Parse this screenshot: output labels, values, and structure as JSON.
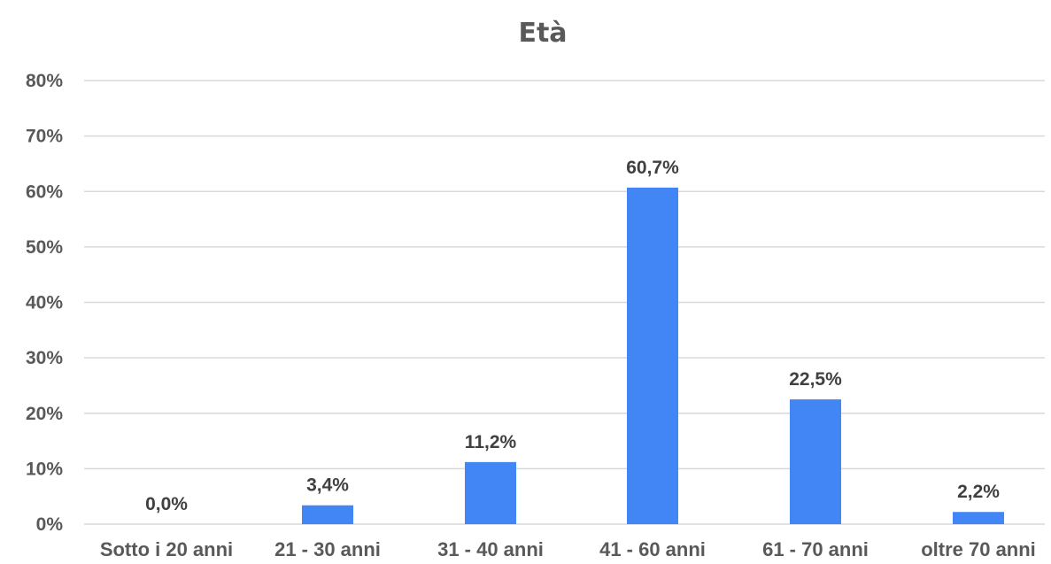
{
  "chart_data": {
    "type": "bar",
    "title": "Età",
    "categories": [
      "Sotto i 20 anni",
      "21 - 30 anni",
      "31 - 40 anni",
      "41 - 60 anni",
      "61 - 70 anni",
      "oltre 70 anni"
    ],
    "values": [
      0.0,
      3.4,
      11.2,
      60.7,
      22.5,
      2.2
    ],
    "data_labels": [
      "0,0%",
      "3,4%",
      "11,2%",
      "60,7%",
      "22,5%",
      "2,2%"
    ],
    "y_ticks": [
      0,
      10,
      20,
      30,
      40,
      50,
      60,
      70,
      80
    ],
    "y_tick_labels": [
      "0%",
      "10%",
      "20%",
      "30%",
      "40%",
      "50%",
      "60%",
      "70%",
      "80%"
    ],
    "ylim": [
      0,
      80
    ],
    "grid": true,
    "legend": "none",
    "xlabel": "",
    "ylabel": "",
    "colors": {
      "bar": "#4285f4",
      "grid": "#d9d9d9",
      "text": "#595959",
      "data_label": "#404040"
    }
  }
}
